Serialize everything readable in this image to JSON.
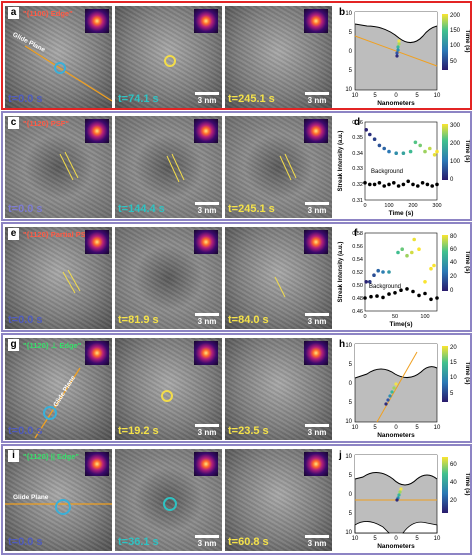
{
  "rows": [
    {
      "label": "a",
      "title": "\"{1100} Edge\"",
      "title_color": "red",
      "times": [
        "t=0.0 s",
        "t=74.1 s",
        "t=245.1 s"
      ],
      "time_colors": [
        "c-blue",
        "c-cyan",
        "c-yellow"
      ],
      "scalebar": "3 nm",
      "annotation": "Glide Plane"
    },
    {
      "label": "c",
      "title": "\"{1120} PSF\"",
      "title_color": "red",
      "times": [
        "t=0.0 s",
        "t=144.4 s",
        "t=245.1 s"
      ],
      "time_colors": [
        "c-purple",
        "c-cyan",
        "c-yellow"
      ],
      "scalebar": "3 nm"
    },
    {
      "label": "e",
      "title": "\"{1120} Partial PSF\"",
      "title_color": "red",
      "times": [
        "t=0.0 s",
        "t=81.9 s",
        "t=84.0 s"
      ],
      "time_colors": [
        "c-blue",
        "c-yellow",
        "c-yellow"
      ],
      "scalebar": "3 nm"
    },
    {
      "label": "g",
      "title": "\"{1120} ⊥ Edge\"",
      "title_color": "green",
      "times": [
        "t=0.0 s",
        "t=19.2 s",
        "t=23.5 s"
      ],
      "time_colors": [
        "c-blue",
        "c-yellow",
        "c-yellow"
      ],
      "scalebar": "3 nm",
      "annotation": "Glide Plane"
    },
    {
      "label": "i",
      "title": "\"{1120} || Edge\"",
      "title_color": "green",
      "times": [
        "t=0.0 s",
        "t=36.1 s",
        "t=60.8 s"
      ],
      "time_colors": [
        "c-blue",
        "c-cyan",
        "c-yellow"
      ],
      "scalebar": "3 nm",
      "annotation": "Glide Plane"
    }
  ],
  "chart_data": [
    {
      "panel": "b",
      "type": "scatter",
      "xlabel": "Nanometers",
      "ylabel": "",
      "xticks": [
        "10",
        "5",
        "0",
        "5",
        "10"
      ],
      "yticks": [
        "10",
        "5",
        "0",
        "5",
        "10"
      ],
      "colorbar": {
        "label": "Time (s)",
        "ticks": [
          "200",
          "150",
          "100",
          "50"
        ],
        "max": 245
      }
    },
    {
      "panel": "d",
      "type": "scatter",
      "xlabel": "Time (s)",
      "ylabel": "Streak Intensity (a.u.)",
      "xlim": [
        0,
        300
      ],
      "ylim": [
        0.31,
        0.36
      ],
      "xticks": [
        "0",
        "100",
        "200",
        "300"
      ],
      "yticks": [
        "0.36",
        "0.35",
        "0.34",
        "0.33",
        "0.32",
        "0.31"
      ],
      "annotation": "Background",
      "colorbar": {
        "label": "Time (s)",
        "ticks": [
          "300",
          "200",
          "100",
          "0"
        ],
        "max": 300
      },
      "series": [
        {
          "values": [
            [
              5,
              0.355
            ],
            [
              20,
              0.352
            ],
            [
              40,
              0.349
            ],
            [
              60,
              0.345
            ],
            [
              80,
              0.343
            ],
            [
              100,
              0.341
            ],
            [
              130,
              0.34
            ],
            [
              160,
              0.34
            ],
            [
              190,
              0.341
            ],
            [
              210,
              0.347
            ],
            [
              230,
              0.345
            ],
            [
              250,
              0.341
            ],
            [
              270,
              0.343
            ],
            [
              290,
              0.339
            ],
            [
              300,
              0.341
            ]
          ]
        },
        {
          "name": "Background",
          "values": [
            [
              0,
              0.321
            ],
            [
              20,
              0.32
            ],
            [
              40,
              0.32
            ],
            [
              60,
              0.321
            ],
            [
              80,
              0.319
            ],
            [
              100,
              0.32
            ],
            [
              120,
              0.321
            ],
            [
              140,
              0.319
            ],
            [
              160,
              0.32
            ],
            [
              180,
              0.322
            ],
            [
              200,
              0.32
            ],
            [
              220,
              0.319
            ],
            [
              240,
              0.321
            ],
            [
              260,
              0.32
            ],
            [
              280,
              0.319
            ],
            [
              300,
              0.32
            ]
          ]
        }
      ]
    },
    {
      "panel": "f",
      "type": "scatter",
      "xlabel": "Time(s)",
      "ylabel": "Streak Intensity (a.u.)",
      "xlim": [
        0,
        120
      ],
      "ylim": [
        0.46,
        0.58
      ],
      "xticks": [
        "0",
        "50",
        "100"
      ],
      "yticks": [
        "0.58",
        "0.56",
        "0.54",
        "0.52",
        "0.50",
        "0.48",
        "0.46"
      ],
      "annotation": "Background",
      "colorbar": {
        "label": "Time (s)",
        "ticks": [
          "80",
          "60",
          "40",
          "20",
          "0"
        ],
        "max": 84
      },
      "series": [
        {
          "values": [
            [
              2,
              0.505
            ],
            [
              8,
              0.505
            ],
            [
              15,
              0.515
            ],
            [
              22,
              0.522
            ],
            [
              30,
              0.52
            ],
            [
              40,
              0.52
            ],
            [
              55,
              0.55
            ],
            [
              62,
              0.555
            ],
            [
              70,
              0.545
            ],
            [
              78,
              0.55
            ],
            [
              82,
              0.57
            ],
            [
              90,
              0.555
            ],
            [
              100,
              0.505
            ],
            [
              110,
              0.525
            ],
            [
              115,
              0.53
            ]
          ]
        },
        {
          "name": "Background",
          "values": [
            [
              0,
              0.48
            ],
            [
              10,
              0.482
            ],
            [
              20,
              0.483
            ],
            [
              30,
              0.481
            ],
            [
              40,
              0.486
            ],
            [
              50,
              0.488
            ],
            [
              60,
              0.492
            ],
            [
              70,
              0.494
            ],
            [
              80,
              0.49
            ],
            [
              90,
              0.484
            ],
            [
              100,
              0.487
            ],
            [
              110,
              0.478
            ],
            [
              120,
              0.48
            ]
          ]
        }
      ]
    },
    {
      "panel": "h",
      "type": "scatter",
      "xlabel": "Nanometers",
      "ylabel": "",
      "xticks": [
        "10",
        "5",
        "0",
        "5",
        "10"
      ],
      "yticks": [
        "10",
        "5",
        "0",
        "5",
        "10"
      ],
      "colorbar": {
        "label": "Time (s)",
        "ticks": [
          "20",
          "15",
          "10",
          "5"
        ],
        "max": 24
      }
    },
    {
      "panel": "j",
      "type": "scatter",
      "xlabel": "Nanometers",
      "ylabel": "",
      "xticks": [
        "10",
        "5",
        "0",
        "5",
        "10"
      ],
      "yticks": [
        "10",
        "5",
        "0",
        "5",
        "10"
      ],
      "colorbar": {
        "label": "Time (s)",
        "ticks": [
          "60",
          "40",
          "20"
        ],
        "max": 61
      }
    }
  ]
}
